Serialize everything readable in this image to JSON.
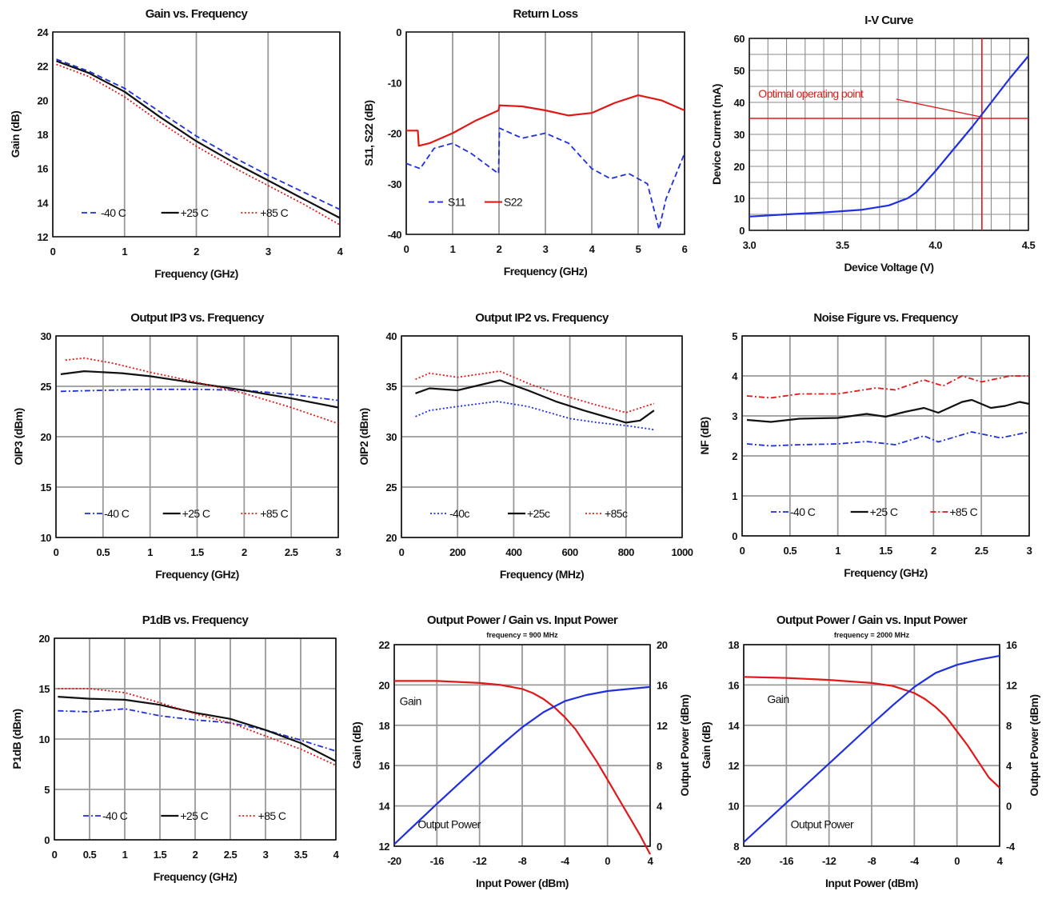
{
  "chart_data": [
    {
      "id": "gain",
      "type": "line",
      "title": "Gain vs. Frequency",
      "xlabel": "Frequency (GHz)",
      "ylabel": "Gain (dB)",
      "xlim": [
        0,
        4
      ],
      "ylim": [
        12,
        24
      ],
      "xticks": [
        0,
        1,
        2,
        3,
        4
      ],
      "yticks": [
        12,
        14,
        16,
        18,
        20,
        22,
        24
      ],
      "xtick_labels": [
        "0",
        "1",
        "2",
        "3",
        "4"
      ],
      "ytick_labels": [
        "12",
        "14",
        "16",
        "18",
        "20",
        "22",
        "24"
      ],
      "grid": "vertical",
      "legend": "bottom-inside",
      "series": [
        {
          "name": "-40 C",
          "color": "#1f2fe0",
          "dash": "dash",
          "x": [
            0.05,
            0.5,
            1,
            1.5,
            2,
            2.5,
            3,
            3.5,
            4
          ],
          "y": [
            22.4,
            21.7,
            20.7,
            19.3,
            17.9,
            16.7,
            15.6,
            14.6,
            13.6
          ]
        },
        {
          "name": "+25 C",
          "color": "#111111",
          "dash": "solid",
          "x": [
            0.05,
            0.5,
            1,
            1.5,
            2,
            2.5,
            3,
            3.5,
            4
          ],
          "y": [
            22.3,
            21.6,
            20.5,
            19.0,
            17.6,
            16.4,
            15.3,
            14.2,
            13.1
          ]
        },
        {
          "name": "+85 C",
          "color": "#e01818",
          "dash": "dot",
          "x": [
            0.05,
            0.5,
            1,
            1.5,
            2,
            2.5,
            3,
            3.5,
            4
          ],
          "y": [
            22.1,
            21.4,
            20.2,
            18.7,
            17.3,
            16.1,
            15.0,
            13.9,
            12.7
          ]
        }
      ]
    },
    {
      "id": "returnloss",
      "type": "line",
      "title": "Return Loss",
      "xlabel": "Frequency (GHz)",
      "ylabel": "S11, S22 (dB)",
      "xlim": [
        0,
        6
      ],
      "ylim": [
        -40,
        0
      ],
      "xticks": [
        0,
        1,
        2,
        3,
        4,
        5,
        6
      ],
      "yticks": [
        -40,
        -30,
        -20,
        -10,
        0
      ],
      "xtick_labels": [
        "0",
        "1",
        "2",
        "3",
        "4",
        "5",
        "6"
      ],
      "ytick_labels": [
        "-40",
        "-30",
        "-20",
        "-10",
        "0"
      ],
      "grid": "vertical",
      "legend": "bottom-left-inside",
      "series": [
        {
          "name": "S11",
          "color": "#1f2fe0",
          "dash": "dash",
          "x": [
            0,
            0.3,
            0.6,
            1.0,
            1.4,
            1.99,
            2.01,
            2.5,
            3.0,
            3.5,
            4.0,
            4.4,
            4.8,
            5.2,
            5.45,
            5.6,
            6.0
          ],
          "y": [
            -26,
            -27,
            -23,
            -22,
            -24,
            -28,
            -19,
            -21,
            -20,
            -22,
            -27,
            -29,
            -28,
            -30,
            -39,
            -33,
            -24
          ]
        },
        {
          "name": "S22",
          "color": "#e01818",
          "dash": "solid",
          "x": [
            0,
            0.25,
            0.27,
            0.5,
            1.0,
            1.5,
            1.99,
            2.01,
            2.5,
            3.0,
            3.5,
            4.0,
            4.5,
            5.0,
            5.5,
            6.0
          ],
          "y": [
            -19.5,
            -19.5,
            -22.5,
            -22,
            -20,
            -17.5,
            -15.5,
            -14.5,
            -14.7,
            -15.5,
            -16.5,
            -16,
            -14,
            -12.5,
            -13.5,
            -15.5
          ]
        }
      ]
    },
    {
      "id": "iv",
      "type": "line",
      "title": "I-V Curve",
      "xlabel": "Device Voltage (V)",
      "ylabel": "Device Current (mA)",
      "xlim": [
        3.0,
        4.5
      ],
      "ylim": [
        0,
        60
      ],
      "xticks": [
        3.0,
        3.5,
        4.0,
        4.5
      ],
      "yticks": [
        0,
        10,
        20,
        30,
        40,
        50,
        60
      ],
      "xtick_labels": [
        "3.0",
        "3.5",
        "4.0",
        "4.5"
      ],
      "ytick_labels": [
        "0",
        "10",
        "20",
        "30",
        "40",
        "50",
        "60"
      ],
      "grid": "fine",
      "operating_point": {
        "x": 4.25,
        "y": 35,
        "color": "#e01818",
        "label": "Optimal operating point"
      },
      "series": [
        {
          "color": "#1f2fe0",
          "dash": "solid",
          "x": [
            3.0,
            3.2,
            3.4,
            3.6,
            3.75,
            3.85,
            3.9,
            4.0,
            4.1,
            4.2,
            4.3,
            4.4,
            4.5
          ],
          "y": [
            4.3,
            5.0,
            5.6,
            6.4,
            7.8,
            10,
            12,
            18.5,
            25.5,
            32.5,
            40,
            47.5,
            54.5
          ]
        }
      ]
    },
    {
      "id": "oip3",
      "type": "line",
      "title": "Output IP3 vs. Frequency",
      "xlabel": "Frequency (GHz)",
      "ylabel": "OIP3 (dBm)",
      "xlim": [
        0,
        3
      ],
      "ylim": [
        10,
        30
      ],
      "xticks": [
        0,
        0.5,
        1,
        1.5,
        2,
        2.5,
        3
      ],
      "yticks": [
        10,
        15,
        20,
        25,
        30
      ],
      "xtick_labels": [
        "0",
        "0.5",
        "1",
        "1.5",
        "2",
        "2.5",
        "3"
      ],
      "ytick_labels": [
        "10",
        "15",
        "20",
        "25",
        "30"
      ],
      "grid": "both",
      "legend": "bottom-inside",
      "series": [
        {
          "name": "-40 C",
          "color": "#1f2fe0",
          "dash": "dashdot",
          "x": [
            0.05,
            0.5,
            1,
            1.5,
            2,
            2.5,
            3
          ],
          "y": [
            24.5,
            24.6,
            24.7,
            24.7,
            24.6,
            24.2,
            23.6
          ]
        },
        {
          "name": "+25 C",
          "color": "#111111",
          "dash": "solid",
          "x": [
            0.05,
            0.3,
            0.7,
            1,
            1.5,
            2,
            2.5,
            3
          ],
          "y": [
            26.2,
            26.5,
            26.3,
            26.0,
            25.3,
            24.6,
            23.8,
            22.9
          ]
        },
        {
          "name": "+85 C",
          "color": "#e01818",
          "dash": "dot",
          "x": [
            0.1,
            0.3,
            0.6,
            1,
            1.5,
            2,
            2.5,
            3
          ],
          "y": [
            27.6,
            27.8,
            27.3,
            26.4,
            25.4,
            24.3,
            22.9,
            21.3
          ]
        }
      ]
    },
    {
      "id": "oip2",
      "type": "line",
      "title": "Output IP2 vs. Frequency",
      "xlabel": "Frequency (MHz)",
      "ylabel": "OIP2 (dBm)",
      "xlim": [
        0,
        1000
      ],
      "ylim": [
        20,
        40
      ],
      "xticks": [
        0,
        200,
        400,
        600,
        800,
        1000
      ],
      "yticks": [
        20,
        25,
        30,
        35,
        40
      ],
      "xtick_labels": [
        "0",
        "200",
        "400",
        "600",
        "800",
        "1000"
      ],
      "ytick_labels": [
        "20",
        "25",
        "30",
        "35",
        "40"
      ],
      "grid": "both",
      "legend": "bottom-inside",
      "series": [
        {
          "name": "-40c",
          "color": "#1f2fe0",
          "dash": "dot",
          "x": [
            50,
            100,
            200,
            340,
            450,
            600,
            700,
            800,
            900
          ],
          "y": [
            32,
            32.6,
            33,
            33.5,
            33,
            31.8,
            31.4,
            31.1,
            30.7
          ]
        },
        {
          "name": "+25c",
          "color": "#111111",
          "dash": "solid",
          "x": [
            50,
            100,
            200,
            350,
            450,
            550,
            650,
            800,
            850,
            900
          ],
          "y": [
            34.3,
            34.8,
            34.6,
            35.6,
            34.6,
            33.5,
            32.6,
            31.4,
            31.6,
            32.6
          ]
        },
        {
          "name": "+85c",
          "color": "#e01818",
          "dash": "dot",
          "x": [
            50,
            100,
            200,
            350,
            450,
            550,
            700,
            800,
            900
          ],
          "y": [
            35.7,
            36.3,
            35.9,
            36.5,
            35.3,
            34.3,
            33.1,
            32.4,
            33.3
          ]
        }
      ]
    },
    {
      "id": "nf",
      "type": "line",
      "title": "Noise Figure vs. Frequency",
      "xlabel": "Frequency (GHz)",
      "ylabel": "NF (dB)",
      "xlim": [
        0,
        3
      ],
      "ylim": [
        0,
        5
      ],
      "xticks": [
        0,
        0.5,
        1,
        1.5,
        2,
        2.5,
        3
      ],
      "yticks": [
        0,
        1,
        2,
        3,
        4,
        5
      ],
      "xtick_labels": [
        "0",
        "0.5",
        "1",
        "1.5",
        "2",
        "2.5",
        "3"
      ],
      "ytick_labels": [
        "0",
        "1",
        "2",
        "3",
        "4",
        "5"
      ],
      "grid": "both",
      "legend": "bottom-inside",
      "series": [
        {
          "name": "-40 C",
          "color": "#1f2fe0",
          "dash": "dashdot",
          "x": [
            0.05,
            0.3,
            0.6,
            1,
            1.3,
            1.6,
            1.9,
            2.05,
            2.4,
            2.7,
            3
          ],
          "y": [
            2.3,
            2.25,
            2.28,
            2.3,
            2.36,
            2.28,
            2.5,
            2.35,
            2.6,
            2.45,
            2.6
          ]
        },
        {
          "name": "+25 C",
          "color": "#111111",
          "dash": "solid",
          "x": [
            0.05,
            0.3,
            0.6,
            1,
            1.3,
            1.5,
            1.7,
            1.9,
            2.05,
            2.3,
            2.4,
            2.6,
            2.75,
            2.9,
            3
          ],
          "y": [
            2.9,
            2.85,
            2.93,
            2.95,
            3.05,
            2.98,
            3.1,
            3.2,
            3.08,
            3.35,
            3.4,
            3.2,
            3.25,
            3.35,
            3.3
          ]
        },
        {
          "name": "+85 C",
          "color": "#e01818",
          "dash": "dashdot",
          "x": [
            0.05,
            0.3,
            0.6,
            1,
            1.4,
            1.6,
            1.9,
            2.1,
            2.3,
            2.5,
            2.8,
            3
          ],
          "y": [
            3.5,
            3.45,
            3.55,
            3.55,
            3.7,
            3.65,
            3.9,
            3.75,
            4.0,
            3.85,
            4.0,
            4.0
          ]
        }
      ]
    },
    {
      "id": "p1db",
      "type": "line",
      "title": "P1dB vs. Frequency",
      "xlabel": "Frequency (GHz)",
      "ylabel": "P1dB (dBm)",
      "xlim": [
        0,
        4
      ],
      "ylim": [
        0,
        20
      ],
      "xticks": [
        0,
        0.5,
        1,
        1.5,
        2,
        2.5,
        3,
        3.5,
        4
      ],
      "yticks": [
        0,
        5,
        10,
        15,
        20
      ],
      "xtick_labels": [
        "0",
        "0.5",
        "1",
        "1.5",
        "2",
        "2.5",
        "3",
        "3.5",
        "4"
      ],
      "ytick_labels": [
        "0",
        "5",
        "10",
        "15",
        "20"
      ],
      "grid": "both",
      "legend": "bottom-inside",
      "series": [
        {
          "name": "-40 C",
          "color": "#1f2fe0",
          "dash": "dashdot",
          "x": [
            0.05,
            0.5,
            1,
            1.5,
            2,
            2.5,
            3,
            3.5,
            4
          ],
          "y": [
            12.8,
            12.7,
            13.0,
            12.3,
            11.9,
            11.6,
            10.9,
            9.9,
            8.8
          ]
        },
        {
          "name": "+25 C",
          "color": "#111111",
          "dash": "solid",
          "x": [
            0.05,
            0.5,
            1,
            1.5,
            2,
            2.5,
            3,
            3.5,
            4
          ],
          "y": [
            14.2,
            14.0,
            13.9,
            13.4,
            12.6,
            12.0,
            10.9,
            9.6,
            7.8
          ]
        },
        {
          "name": "+85 C",
          "color": "#e01818",
          "dash": "dot",
          "x": [
            0.05,
            0.5,
            1,
            1.5,
            2,
            2.5,
            3,
            3.5,
            4
          ],
          "y": [
            15.0,
            15.0,
            14.6,
            13.6,
            12.5,
            11.6,
            10.3,
            9.0,
            7.4
          ]
        }
      ]
    },
    {
      "id": "pout900",
      "type": "line",
      "title": "Output Power / Gain vs. Input Power",
      "subtitle": "frequency = 900 MHz",
      "xlabel": "Input Power (dBm)",
      "ylabel": "Gain (dB)",
      "y2label": "Output Power (dBm)",
      "xlim": [
        -20,
        4
      ],
      "ylim": [
        12,
        22
      ],
      "y2lim": [
        0,
        20
      ],
      "xticks": [
        -20,
        -16,
        -12,
        -8,
        -4,
        0,
        4
      ],
      "yticks": [
        12,
        14,
        16,
        18,
        20,
        22
      ],
      "y2ticks": [
        0,
        4,
        8,
        12,
        16,
        20
      ],
      "xtick_labels": [
        "-20",
        "-16",
        "-12",
        "-8",
        "-4",
        "0",
        "4"
      ],
      "ytick_labels": [
        "12",
        "14",
        "16",
        "18",
        "20",
        "22"
      ],
      "y2tick_labels": [
        "0",
        "4",
        "8",
        "12",
        "16",
        "20"
      ],
      "grid": "both",
      "annotations": [
        {
          "text": "Gain",
          "x": -19.5,
          "y": 19.0
        },
        {
          "text": "Output Power",
          "x": -17.8,
          "y": 12.9
        }
      ],
      "series": [
        {
          "color": "#e01818",
          "axis": "left",
          "dash": "solid",
          "x": [
            -20,
            -16,
            -12,
            -10,
            -8,
            -7,
            -6,
            -5,
            -4,
            -3,
            -2,
            -1,
            0,
            1,
            2,
            3,
            4
          ],
          "y": [
            20.2,
            20.2,
            20.1,
            20.0,
            19.8,
            19.6,
            19.3,
            18.9,
            18.4,
            17.8,
            17.0,
            16.2,
            15.3,
            14.4,
            13.5,
            12.6,
            11.6
          ]
        },
        {
          "color": "#1f2fe0",
          "axis": "right",
          "dash": "solid",
          "x": [
            -20,
            -16,
            -12,
            -10,
            -8,
            -6,
            -4,
            -2,
            0,
            2,
            4
          ],
          "y": [
            0.2,
            4.2,
            8.1,
            10.0,
            11.8,
            13.3,
            14.4,
            15.0,
            15.4,
            15.6,
            15.8
          ]
        }
      ]
    },
    {
      "id": "pout2000",
      "type": "line",
      "title": "Output Power / Gain vs. Input Power",
      "subtitle": "frequency = 2000 MHz",
      "xlabel": "Input Power (dBm)",
      "ylabel": "Gain (dB)",
      "y2label": "Output Power (dBm)",
      "xlim": [
        -20,
        4
      ],
      "ylim": [
        8,
        18
      ],
      "y2lim": [
        -4,
        16
      ],
      "xticks": [
        -20,
        -16,
        -12,
        -8,
        -4,
        0,
        4
      ],
      "yticks": [
        8,
        10,
        12,
        14,
        16,
        18
      ],
      "y2ticks": [
        -4,
        0,
        4,
        8,
        12,
        16
      ],
      "xtick_labels": [
        "-20",
        "-16",
        "-12",
        "-8",
        "-4",
        "0",
        "4"
      ],
      "ytick_labels": [
        "8",
        "10",
        "12",
        "14",
        "16",
        "18"
      ],
      "y2tick_labels": [
        "-4",
        "0",
        "4",
        "8",
        "12",
        "16"
      ],
      "grid": "both",
      "annotations": [
        {
          "text": "Gain",
          "x": -17.8,
          "y": 15.1
        },
        {
          "text": "Output Power",
          "x": -15.6,
          "y": 8.9
        }
      ],
      "series": [
        {
          "color": "#e01818",
          "axis": "left",
          "dash": "solid",
          "x": [
            -20,
            -16,
            -12,
            -8,
            -6,
            -4,
            -3,
            -2,
            -1,
            0,
            1,
            2,
            3,
            4
          ],
          "y": [
            16.4,
            16.35,
            16.25,
            16.1,
            15.95,
            15.6,
            15.3,
            14.9,
            14.4,
            13.7,
            13.0,
            12.2,
            11.4,
            10.9
          ]
        },
        {
          "color": "#1f2fe0",
          "axis": "right",
          "dash": "solid",
          "x": [
            -20,
            -16,
            -12,
            -8,
            -6,
            -4,
            -2,
            0,
            2,
            4
          ],
          "y": [
            -3.6,
            0.3,
            4.2,
            8.1,
            10.0,
            11.8,
            13.2,
            14.0,
            14.5,
            14.9
          ]
        }
      ]
    }
  ]
}
